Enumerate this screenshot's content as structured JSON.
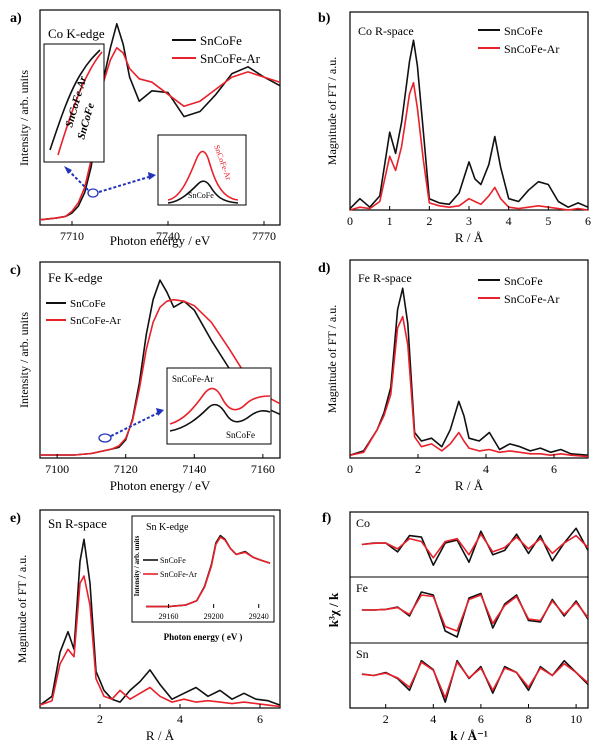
{
  "colors": {
    "series1": "#111111",
    "series2": "#e8212b",
    "arrow": "#2233bb"
  },
  "panels": [
    {
      "label": "a)",
      "title": "Co  K-edge",
      "xlabel": "Photon energy / eV",
      "ylabel": "Intensity / arb. units",
      "xticks": [
        "7710",
        "7740",
        "7770"
      ],
      "legend": [
        "SnCoFe",
        "SnCoFe-Ar"
      ],
      "inset_left_labels": [
        "SnCoFe-Ar",
        "SnCoFe"
      ],
      "inset_right_labels": [
        "SnCoFe-Ar",
        "SnCoFe"
      ]
    },
    {
      "label": "b)",
      "title": "Co R-space",
      "xlabel": "R / Å",
      "ylabel": "Magnitude of FT / a.u.",
      "xticks": [
        "0",
        "1",
        "2",
        "3",
        "4",
        "5",
        "6"
      ],
      "legend": [
        "SnCoFe",
        "SnCoFe-Ar"
      ]
    },
    {
      "label": "c)",
      "title": "Fe  K-edge",
      "xlabel": "Photon energy / eV",
      "ylabel": "Intensity / arb. units",
      "xticks": [
        "7100",
        "7120",
        "7140",
        "7160"
      ],
      "legend": [
        "SnCoFe",
        "SnCoFe-Ar"
      ],
      "inset_labels": [
        "SnCoFe-Ar",
        "SnCoFe"
      ]
    },
    {
      "label": "d)",
      "title": "Fe  R-space",
      "xlabel": "R / Å",
      "ylabel": "Magnitude of FT / a.u.",
      "xticks": [
        "0",
        "2",
        "4",
        "6"
      ],
      "legend": [
        "SnCoFe",
        "SnCoFe-Ar"
      ]
    },
    {
      "label": "e)",
      "title": "Sn R-space",
      "xlabel": "R / Å",
      "ylabel": "Magnitude of FT / a.u.",
      "xticks": [
        "2",
        "4",
        "6"
      ],
      "inset_title": "Sn  K-edge",
      "inset_xlabel": "Photon energy ( eV )",
      "inset_ylabel": "Intensity / arb. units",
      "inset_xticks": [
        "29160",
        "29200",
        "29240"
      ],
      "inset_legend": [
        "SnCoFe",
        "SnCoFe-Ar"
      ]
    },
    {
      "label": "f)",
      "xlabel": "k / Å⁻¹",
      "ylabel": "k³χ / k",
      "xticks": [
        "2",
        "4",
        "6",
        "8",
        "10"
      ],
      "stack_labels": [
        "Co",
        "Fe",
        "Sn"
      ]
    }
  ],
  "chart_data": [
    {
      "type": "line",
      "title": "Co  K-edge",
      "xlabel": "Photon energy / eV",
      "ylabel": "Intensity / arb. units",
      "xlim": [
        7700,
        7775
      ],
      "series": [
        {
          "name": "SnCoFe",
          "x": [
            7700,
            7705,
            7708,
            7710,
            7712,
            7714,
            7716,
            7718,
            7720,
            7722,
            7724,
            7726,
            7728,
            7731,
            7735,
            7740,
            7745,
            7750,
            7755,
            7760,
            7765,
            7770,
            7775
          ],
          "y": [
            0.03,
            0.04,
            0.05,
            0.07,
            0.11,
            0.19,
            0.34,
            0.58,
            0.86,
            1.03,
            1.17,
            1.05,
            0.86,
            0.72,
            0.78,
            0.77,
            0.63,
            0.66,
            0.76,
            0.88,
            0.92,
            0.86,
            0.81
          ]
        },
        {
          "name": "SnCoFe-Ar",
          "x": [
            7700,
            7705,
            7708,
            7710,
            7712,
            7714,
            7716,
            7718,
            7720,
            7722,
            7724,
            7726,
            7728,
            7731,
            7735,
            7740,
            7745,
            7750,
            7755,
            7760,
            7765,
            7770,
            7775
          ],
          "y": [
            0.03,
            0.04,
            0.05,
            0.08,
            0.13,
            0.22,
            0.38,
            0.62,
            0.84,
            0.96,
            1.03,
            1.0,
            0.91,
            0.85,
            0.83,
            0.76,
            0.69,
            0.72,
            0.79,
            0.86,
            0.89,
            0.86,
            0.83
          ]
        }
      ]
    },
    {
      "type": "line",
      "title": "Co R-space",
      "xlabel": "R / Å",
      "ylabel": "Magnitude of FT / a.u.",
      "xlim": [
        0,
        6
      ],
      "series": [
        {
          "name": "SnCoFe",
          "x": [
            0.0,
            0.25,
            0.5,
            0.75,
            1.0,
            1.15,
            1.3,
            1.5,
            1.6,
            1.7,
            1.85,
            2.0,
            2.25,
            2.5,
            2.75,
            3.0,
            3.15,
            3.3,
            3.5,
            3.65,
            3.8,
            4.0,
            4.25,
            4.5,
            4.75,
            5.0,
            5.25,
            5.5,
            5.75,
            6.0
          ],
          "y": [
            0.01,
            0.08,
            0.02,
            0.1,
            0.55,
            0.4,
            0.62,
            1.05,
            1.2,
            1.02,
            0.55,
            0.08,
            0.05,
            0.04,
            0.12,
            0.34,
            0.22,
            0.18,
            0.32,
            0.52,
            0.3,
            0.08,
            0.06,
            0.14,
            0.2,
            0.18,
            0.06,
            0.02,
            0.05,
            0.02
          ]
        },
        {
          "name": "SnCoFe-Ar",
          "x": [
            0.0,
            0.25,
            0.5,
            0.75,
            1.0,
            1.15,
            1.3,
            1.5,
            1.6,
            1.7,
            1.85,
            2.0,
            2.25,
            2.5,
            2.75,
            3.0,
            3.15,
            3.3,
            3.5,
            3.65,
            3.8,
            4.0,
            4.25,
            4.5,
            4.75,
            5.0,
            5.25,
            5.5,
            5.75,
            6.0
          ],
          "y": [
            0.0,
            0.02,
            0.01,
            0.06,
            0.38,
            0.28,
            0.45,
            0.82,
            0.9,
            0.72,
            0.35,
            0.05,
            0.03,
            0.02,
            0.03,
            0.08,
            0.06,
            0.04,
            0.1,
            0.16,
            0.08,
            0.02,
            0.01,
            0.02,
            0.03,
            0.02,
            0.01,
            0.0,
            0.01,
            0.0
          ]
        }
      ]
    },
    {
      "type": "line",
      "title": "Fe  K-edge",
      "xlabel": "Photon energy / eV",
      "ylabel": "Intensity / arb. units",
      "xlim": [
        7095,
        7165
      ],
      "series": [
        {
          "name": "SnCoFe",
          "x": [
            7095,
            7105,
            7110,
            7114,
            7116,
            7118,
            7120,
            7122,
            7124,
            7126,
            7128,
            7130,
            7132,
            7134,
            7137,
            7140,
            7145,
            7150,
            7155,
            7160,
            7165
          ],
          "y": [
            0.02,
            0.02,
            0.03,
            0.05,
            0.06,
            0.07,
            0.12,
            0.26,
            0.5,
            0.82,
            1.05,
            1.18,
            1.1,
            1.0,
            1.04,
            0.98,
            0.78,
            0.6,
            0.44,
            0.34,
            0.29
          ]
        },
        {
          "name": "SnCoFe-Ar",
          "x": [
            7095,
            7105,
            7110,
            7114,
            7116,
            7118,
            7120,
            7122,
            7124,
            7126,
            7128,
            7130,
            7132,
            7134,
            7137,
            7140,
            7145,
            7150,
            7155,
            7160,
            7165
          ],
          "y": [
            0.02,
            0.02,
            0.03,
            0.05,
            0.06,
            0.08,
            0.13,
            0.25,
            0.46,
            0.72,
            0.9,
            1.0,
            1.04,
            1.05,
            1.04,
            1.01,
            0.9,
            0.73,
            0.55,
            0.42,
            0.36
          ]
        }
      ]
    },
    {
      "type": "line",
      "title": "Fe  R-space",
      "xlabel": "R / Å",
      "ylabel": "Magnitude of FT / a.u.",
      "xlim": [
        0,
        7
      ],
      "series": [
        {
          "name": "SnCoFe",
          "x": [
            0.0,
            0.4,
            0.8,
            1.0,
            1.2,
            1.4,
            1.55,
            1.7,
            1.9,
            2.1,
            2.4,
            2.7,
            2.95,
            3.2,
            3.35,
            3.5,
            3.8,
            4.1,
            4.4,
            4.7,
            5.0,
            5.3,
            5.6,
            5.9,
            6.2,
            6.5,
            7.0
          ],
          "y": [
            0.02,
            0.05,
            0.2,
            0.32,
            0.5,
            1.05,
            1.2,
            0.95,
            0.18,
            0.12,
            0.14,
            0.08,
            0.2,
            0.4,
            0.3,
            0.14,
            0.12,
            0.18,
            0.06,
            0.1,
            0.08,
            0.05,
            0.07,
            0.04,
            0.06,
            0.03,
            0.02
          ]
        },
        {
          "name": "SnCoFe-Ar",
          "x": [
            0.0,
            0.4,
            0.8,
            1.0,
            1.2,
            1.4,
            1.55,
            1.7,
            1.9,
            2.1,
            2.4,
            2.7,
            2.95,
            3.2,
            3.35,
            3.5,
            3.8,
            4.1,
            4.4,
            4.7,
            5.0,
            5.3,
            5.6,
            5.9,
            6.2,
            6.5,
            7.0
          ],
          "y": [
            0.02,
            0.04,
            0.2,
            0.3,
            0.45,
            0.92,
            1.0,
            0.8,
            0.15,
            0.08,
            0.1,
            0.05,
            0.1,
            0.18,
            0.12,
            0.07,
            0.05,
            0.06,
            0.04,
            0.05,
            0.04,
            0.03,
            0.03,
            0.02,
            0.03,
            0.02,
            0.01
          ]
        }
      ]
    },
    {
      "type": "line",
      "title": "Sn R-space",
      "xlabel": "R / Å",
      "ylabel": "Magnitude of FT / a.u.",
      "xlim": [
        0.5,
        6.5
      ],
      "series": [
        {
          "name": "SnCoFe",
          "x": [
            0.5,
            0.8,
            1.0,
            1.2,
            1.35,
            1.5,
            1.6,
            1.75,
            1.9,
            2.1,
            2.3,
            2.5,
            2.75,
            3.0,
            3.25,
            3.5,
            3.8,
            4.1,
            4.4,
            4.7,
            5.0,
            5.3,
            5.6,
            5.9,
            6.2,
            6.5
          ],
          "y": [
            0.02,
            0.08,
            0.38,
            0.52,
            0.4,
            1.0,
            1.15,
            0.85,
            0.25,
            0.12,
            0.06,
            0.04,
            0.12,
            0.18,
            0.26,
            0.16,
            0.06,
            0.1,
            0.14,
            0.08,
            0.12,
            0.06,
            0.1,
            0.06,
            0.05,
            0.02
          ]
        },
        {
          "name": "SnCoFe-Ar",
          "x": [
            0.5,
            0.8,
            1.0,
            1.2,
            1.35,
            1.5,
            1.6,
            1.75,
            1.9,
            2.1,
            2.3,
            2.5,
            2.75,
            3.0,
            3.25,
            3.5,
            3.8,
            4.1,
            4.4,
            4.7,
            5.0,
            5.3,
            5.6,
            5.9,
            6.2,
            6.5
          ],
          "y": [
            0.02,
            0.05,
            0.3,
            0.4,
            0.35,
            0.85,
            0.9,
            0.7,
            0.2,
            0.08,
            0.06,
            0.12,
            0.06,
            0.1,
            0.14,
            0.08,
            0.04,
            0.06,
            0.04,
            0.05,
            0.04,
            0.03,
            0.04,
            0.03,
            0.02,
            0.01
          ]
        }
      ]
    },
    {
      "type": "line",
      "title": "Sn  K-edge",
      "xlabel": "Photon energy ( eV )",
      "ylabel": "Intensity / arb. units",
      "xlim": [
        29140,
        29250
      ],
      "series": [
        {
          "name": "SnCoFe",
          "x": [
            29140,
            29160,
            29175,
            29185,
            29192,
            29198,
            29202,
            29206,
            29210,
            29215,
            29220,
            29228,
            29235,
            29242,
            29250
          ],
          "y": [
            0.02,
            0.02,
            0.04,
            0.1,
            0.3,
            0.6,
            0.9,
            1.0,
            0.95,
            0.82,
            0.74,
            0.78,
            0.7,
            0.66,
            0.62
          ]
        },
        {
          "name": "SnCoFe-Ar",
          "x": [
            29140,
            29160,
            29175,
            29185,
            29192,
            29198,
            29202,
            29206,
            29210,
            29215,
            29220,
            29228,
            29235,
            29242,
            29250
          ],
          "y": [
            0.02,
            0.02,
            0.04,
            0.1,
            0.29,
            0.58,
            0.88,
            0.98,
            0.94,
            0.82,
            0.74,
            0.77,
            0.7,
            0.66,
            0.62
          ]
        }
      ]
    },
    {
      "type": "line",
      "title": "",
      "xlabel": "k / Å⁻¹",
      "ylabel": "k³χ / k",
      "xlim": [
        0.5,
        10.5
      ],
      "series": [
        {
          "name": "Co SnCoFe",
          "x": [
            1.0,
            1.5,
            2.0,
            2.5,
            3.0,
            3.5,
            4.0,
            4.5,
            5.0,
            5.5,
            6.0,
            6.5,
            7.0,
            7.5,
            8.0,
            8.5,
            9.0,
            9.5,
            10.0,
            10.5
          ],
          "y": [
            0.0,
            0.05,
            0.05,
            -0.25,
            0.3,
            0.25,
            -0.7,
            0.05,
            0.15,
            -0.6,
            0.45,
            -0.35,
            -0.2,
            0.35,
            -0.3,
            0.3,
            -0.55,
            0.05,
            0.55,
            -0.2
          ]
        },
        {
          "name": "Co SnCoFe-Ar",
          "x": [
            1.0,
            1.5,
            2.0,
            2.5,
            3.0,
            3.5,
            4.0,
            4.5,
            5.0,
            5.5,
            6.0,
            6.5,
            7.0,
            7.5,
            8.0,
            8.5,
            9.0,
            9.5,
            10.0,
            10.5
          ],
          "y": [
            0.0,
            0.04,
            0.05,
            -0.15,
            0.2,
            0.1,
            -0.45,
            0.1,
            0.2,
            -0.35,
            0.35,
            -0.25,
            -0.1,
            0.25,
            -0.15,
            0.2,
            -0.3,
            0.05,
            0.3,
            -0.1
          ]
        },
        {
          "name": "Fe SnCoFe",
          "x": [
            1.0,
            1.5,
            2.0,
            2.5,
            3.0,
            3.5,
            4.0,
            4.5,
            5.0,
            5.5,
            6.0,
            6.5,
            7.0,
            7.5,
            8.0,
            8.5,
            9.0,
            9.5,
            10.0,
            10.5
          ],
          "y": [
            0.0,
            0.0,
            0.02,
            0.1,
            -0.2,
            0.6,
            0.5,
            -0.7,
            -0.9,
            0.4,
            0.55,
            -0.6,
            0.2,
            0.5,
            -0.35,
            -0.4,
            0.35,
            -0.2,
            0.3,
            -0.3
          ]
        },
        {
          "name": "Fe SnCoFe-Ar",
          "x": [
            1.0,
            1.5,
            2.0,
            2.5,
            3.0,
            3.5,
            4.0,
            4.5,
            5.0,
            5.5,
            6.0,
            6.5,
            7.0,
            7.5,
            8.0,
            8.5,
            9.0,
            9.5,
            10.0,
            10.5
          ],
          "y": [
            0.0,
            0.0,
            0.02,
            0.08,
            -0.15,
            0.5,
            0.45,
            -0.55,
            -0.7,
            0.35,
            0.5,
            -0.45,
            0.15,
            0.45,
            -0.3,
            -0.35,
            0.3,
            -0.15,
            0.25,
            -0.25
          ]
        },
        {
          "name": "Sn SnCoFe",
          "x": [
            1.0,
            1.5,
            2.0,
            2.5,
            3.0,
            3.5,
            4.0,
            4.5,
            5.0,
            5.5,
            6.0,
            6.5,
            7.0,
            7.5,
            8.0,
            8.5,
            9.0,
            9.5,
            10.0,
            10.5
          ],
          "y": [
            0.05,
            0.0,
            0.1,
            -0.1,
            -0.5,
            0.5,
            0.2,
            -0.9,
            0.5,
            -0.1,
            0.3,
            -0.6,
            0.3,
            0.1,
            -0.5,
            0.3,
            0.0,
            0.5,
            0.1,
            -0.3
          ]
        },
        {
          "name": "Sn SnCoFe-Ar",
          "x": [
            1.0,
            1.5,
            2.0,
            2.5,
            3.0,
            3.5,
            4.0,
            4.5,
            5.0,
            5.5,
            6.0,
            6.5,
            7.0,
            7.5,
            8.0,
            8.5,
            9.0,
            9.5,
            10.0,
            10.5
          ],
          "y": [
            0.04,
            0.0,
            0.08,
            -0.08,
            -0.4,
            0.45,
            0.18,
            -0.75,
            0.45,
            -0.08,
            0.25,
            -0.5,
            0.25,
            0.1,
            -0.4,
            0.25,
            0.0,
            0.4,
            0.1,
            -0.25
          ]
        }
      ]
    }
  ]
}
